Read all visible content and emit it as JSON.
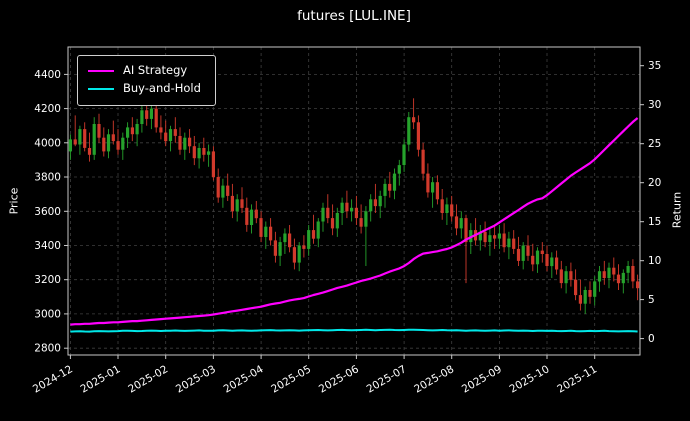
{
  "title": "futures [LUL.INE]",
  "legend": {
    "items": [
      {
        "label": "AI Strategy",
        "color": "#ff00ff"
      },
      {
        "label": "Buy-and-Hold",
        "color": "#00e8e8"
      }
    ]
  },
  "chart_data": {
    "type": "candlestick_with_lines",
    "title": "futures [LUL.INE]",
    "background": "#000000",
    "grid": {
      "visible": true,
      "color": "#3f3f3f",
      "style": "dashed"
    },
    "legend_position": "upper left",
    "x_ticks": {
      "labels": [
        "2024-12",
        "2025-01",
        "2025-02",
        "2025-03",
        "2025-04",
        "2025-05",
        "2025-06",
        "2025-07",
        "2025-08",
        "2025-09",
        "2025-10",
        "2025-11"
      ],
      "candle_indices": [
        0,
        10,
        20,
        30,
        40,
        50,
        60,
        70,
        80,
        90,
        100,
        110
      ]
    },
    "price_axis": {
      "label": "Price",
      "side": "left",
      "ticks": [
        2800,
        3000,
        3200,
        3400,
        3600,
        3800,
        4000,
        4200,
        4400
      ],
      "ylim": [
        2760,
        4560
      ]
    },
    "return_axis": {
      "label": "Return",
      "side": "right",
      "ticks": [
        0,
        5,
        10,
        15,
        20,
        25,
        30,
        35
      ],
      "ylim": [
        -2.1,
        37.4
      ]
    },
    "candles": {
      "up_color": "#26a32c",
      "down_color": "#d23a2c",
      "ohlc": [
        [
          3950,
          4050,
          3900,
          4020
        ],
        [
          4020,
          4160,
          3980,
          3990
        ],
        [
          3990,
          4100,
          3930,
          4080
        ],
        [
          4080,
          4120,
          3950,
          3970
        ],
        [
          3970,
          4060,
          3890,
          3930
        ],
        [
          3930,
          4150,
          3900,
          4110
        ],
        [
          4110,
          4170,
          4000,
          4030
        ],
        [
          4030,
          4090,
          3920,
          3950
        ],
        [
          3950,
          4080,
          3910,
          4050
        ],
        [
          4050,
          4130,
          3990,
          4010
        ],
        [
          4010,
          4080,
          3930,
          3960
        ],
        [
          3960,
          4060,
          3900,
          4030
        ],
        [
          4030,
          4120,
          3970,
          4090
        ],
        [
          4090,
          4150,
          4010,
          4050
        ],
        [
          4050,
          4140,
          3980,
          4110
        ],
        [
          4110,
          4220,
          4060,
          4190
        ],
        [
          4190,
          4240,
          4100,
          4140
        ],
        [
          4140,
          4230,
          4080,
          4200
        ],
        [
          4200,
          4220,
          4060,
          4090
        ],
        [
          4090,
          4160,
          4020,
          4060
        ],
        [
          4060,
          4130,
          3980,
          4010
        ],
        [
          4010,
          4100,
          3950,
          4080
        ],
        [
          4080,
          4150,
          4000,
          4040
        ],
        [
          4040,
          4090,
          3930,
          3960
        ],
        [
          3960,
          4060,
          3900,
          4030
        ],
        [
          4030,
          4080,
          3940,
          3980
        ],
        [
          3980,
          4040,
          3870,
          3910
        ],
        [
          3910,
          4000,
          3850,
          3970
        ],
        [
          3970,
          4030,
          3890,
          3930
        ],
        [
          3930,
          3990,
          3860,
          3950
        ],
        [
          3950,
          3980,
          3780,
          3800
        ],
        [
          3800,
          3850,
          3650,
          3680
        ],
        [
          3680,
          3790,
          3620,
          3750
        ],
        [
          3750,
          3820,
          3660,
          3690
        ],
        [
          3690,
          3760,
          3560,
          3600
        ],
        [
          3600,
          3700,
          3540,
          3670
        ],
        [
          3670,
          3740,
          3590,
          3620
        ],
        [
          3620,
          3680,
          3480,
          3520
        ],
        [
          3520,
          3640,
          3470,
          3610
        ],
        [
          3610,
          3660,
          3530,
          3560
        ],
        [
          3560,
          3600,
          3420,
          3450
        ],
        [
          3450,
          3540,
          3380,
          3510
        ],
        [
          3510,
          3560,
          3400,
          3430
        ],
        [
          3430,
          3480,
          3300,
          3340
        ],
        [
          3340,
          3450,
          3280,
          3420
        ],
        [
          3420,
          3500,
          3350,
          3470
        ],
        [
          3470,
          3520,
          3360,
          3390
        ],
        [
          3390,
          3440,
          3260,
          3300
        ],
        [
          3300,
          3420,
          3250,
          3400
        ],
        [
          3400,
          3460,
          3330,
          3380
        ],
        [
          3380,
          3520,
          3340,
          3490
        ],
        [
          3490,
          3580,
          3410,
          3440
        ],
        [
          3440,
          3560,
          3390,
          3540
        ],
        [
          3540,
          3650,
          3480,
          3620
        ],
        [
          3620,
          3700,
          3530,
          3560
        ],
        [
          3560,
          3640,
          3460,
          3500
        ],
        [
          3500,
          3620,
          3450,
          3590
        ],
        [
          3590,
          3680,
          3520,
          3650
        ],
        [
          3650,
          3720,
          3560,
          3600
        ],
        [
          3600,
          3670,
          3540,
          3620
        ],
        [
          3620,
          3690,
          3520,
          3560
        ],
        [
          3560,
          3640,
          3470,
          3510
        ],
        [
          3510,
          3630,
          3280,
          3600
        ],
        [
          3600,
          3700,
          3540,
          3670
        ],
        [
          3670,
          3760,
          3590,
          3630
        ],
        [
          3630,
          3720,
          3560,
          3690
        ],
        [
          3690,
          3790,
          3620,
          3760
        ],
        [
          3760,
          3830,
          3680,
          3720
        ],
        [
          3720,
          3850,
          3670,
          3820
        ],
        [
          3820,
          3900,
          3750,
          3870
        ],
        [
          3870,
          4020,
          3830,
          3990
        ],
        [
          3990,
          4180,
          3950,
          4150
        ],
        [
          4150,
          4260,
          4080,
          4120
        ],
        [
          4120,
          4160,
          3920,
          3960
        ],
        [
          3960,
          4000,
          3780,
          3820
        ],
        [
          3820,
          3880,
          3680,
          3710
        ],
        [
          3710,
          3800,
          3620,
          3770
        ],
        [
          3770,
          3810,
          3640,
          3670
        ],
        [
          3670,
          3730,
          3550,
          3590
        ],
        [
          3590,
          3680,
          3520,
          3640
        ],
        [
          3640,
          3690,
          3540,
          3570
        ],
        [
          3570,
          3640,
          3460,
          3500
        ],
        [
          3500,
          3600,
          3440,
          3560
        ],
        [
          3560,
          3580,
          3180,
          3420
        ],
        [
          3420,
          3530,
          3350,
          3490
        ],
        [
          3490,
          3560,
          3400,
          3430
        ],
        [
          3430,
          3520,
          3370,
          3480
        ],
        [
          3480,
          3540,
          3390,
          3420
        ],
        [
          3420,
          3500,
          3340,
          3460
        ],
        [
          3460,
          3510,
          3380,
          3440
        ],
        [
          3440,
          3520,
          3380,
          3470
        ],
        [
          3470,
          3530,
          3360,
          3390
        ],
        [
          3390,
          3480,
          3320,
          3440
        ],
        [
          3440,
          3490,
          3350,
          3380
        ],
        [
          3380,
          3450,
          3280,
          3310
        ],
        [
          3310,
          3420,
          3260,
          3400
        ],
        [
          3400,
          3460,
          3310,
          3340
        ],
        [
          3340,
          3410,
          3250,
          3290
        ],
        [
          3290,
          3390,
          3240,
          3370
        ],
        [
          3370,
          3420,
          3300,
          3350
        ],
        [
          3350,
          3400,
          3250,
          3280
        ],
        [
          3280,
          3360,
          3210,
          3330
        ],
        [
          3330,
          3370,
          3230,
          3260
        ],
        [
          3260,
          3310,
          3150,
          3180
        ],
        [
          3180,
          3280,
          3120,
          3250
        ],
        [
          3250,
          3300,
          3160,
          3200
        ],
        [
          3200,
          3260,
          3080,
          3110
        ],
        [
          3110,
          3200,
          3020,
          3060
        ],
        [
          3060,
          3160,
          3000,
          3140
        ],
        [
          3140,
          3190,
          3060,
          3100
        ],
        [
          3100,
          3220,
          3050,
          3190
        ],
        [
          3190,
          3280,
          3130,
          3250
        ],
        [
          3250,
          3310,
          3170,
          3210
        ],
        [
          3210,
          3300,
          3150,
          3270
        ],
        [
          3270,
          3330,
          3190,
          3230
        ],
        [
          3230,
          3290,
          3140,
          3180
        ],
        [
          3180,
          3260,
          3120,
          3240
        ],
        [
          3240,
          3310,
          3180,
          3280
        ],
        [
          3280,
          3320,
          3150,
          3190
        ],
        [
          3190,
          3230,
          3080,
          3150
        ]
      ]
    },
    "series": [
      {
        "name": "AI Strategy",
        "color": "#ff00ff",
        "axis": "return",
        "values": [
          1.8,
          1.85,
          1.85,
          1.9,
          1.9,
          1.95,
          2.0,
          2.0,
          2.05,
          2.1,
          2.1,
          2.15,
          2.2,
          2.25,
          2.25,
          2.3,
          2.35,
          2.4,
          2.45,
          2.5,
          2.55,
          2.6,
          2.65,
          2.7,
          2.75,
          2.8,
          2.85,
          2.9,
          2.95,
          3.0,
          3.1,
          3.2,
          3.3,
          3.4,
          3.5,
          3.6,
          3.7,
          3.8,
          3.9,
          4.0,
          4.1,
          4.25,
          4.4,
          4.5,
          4.6,
          4.75,
          4.9,
          5.0,
          5.1,
          5.2,
          5.4,
          5.6,
          5.75,
          5.9,
          6.1,
          6.3,
          6.5,
          6.65,
          6.8,
          7.0,
          7.2,
          7.4,
          7.55,
          7.7,
          7.9,
          8.1,
          8.35,
          8.6,
          8.8,
          9.0,
          9.3,
          9.7,
          10.2,
          10.6,
          10.9,
          11.0,
          11.1,
          11.2,
          11.35,
          11.5,
          11.7,
          12.0,
          12.3,
          12.7,
          13.0,
          13.3,
          13.6,
          13.9,
          14.2,
          14.5,
          14.9,
          15.3,
          15.7,
          16.1,
          16.5,
          16.9,
          17.3,
          17.6,
          17.85,
          18.0,
          18.4,
          18.9,
          19.4,
          19.9,
          20.4,
          20.9,
          21.3,
          21.7,
          22.1,
          22.5,
          23.0,
          23.6,
          24.2,
          24.8,
          25.4,
          26.0,
          26.6,
          27.2,
          27.8,
          28.3
        ]
      },
      {
        "name": "Buy-and-Hold",
        "color": "#00e8e8",
        "axis": "return",
        "values": [
          0.9,
          0.93,
          0.95,
          0.92,
          0.9,
          0.94,
          0.97,
          0.95,
          0.93,
          0.95,
          0.97,
          1.0,
          1.02,
          0.99,
          0.96,
          0.98,
          1.01,
          1.03,
          1.0,
          0.98,
          1.0,
          1.02,
          1.04,
          1.01,
          0.99,
          1.01,
          1.03,
          1.05,
          1.02,
          1.0,
          1.02,
          1.05,
          1.07,
          1.04,
          1.02,
          1.04,
          1.06,
          1.03,
          1.01,
          1.03,
          1.05,
          1.07,
          1.09,
          1.06,
          1.04,
          1.06,
          1.08,
          1.05,
          1.03,
          1.05,
          1.07,
          1.09,
          1.11,
          1.08,
          1.06,
          1.08,
          1.1,
          1.12,
          1.09,
          1.07,
          1.09,
          1.11,
          1.13,
          1.1,
          1.08,
          1.1,
          1.12,
          1.14,
          1.11,
          1.09,
          1.11,
          1.13,
          1.15,
          1.12,
          1.1,
          1.08,
          1.06,
          1.08,
          1.1,
          1.07,
          1.05,
          1.07,
          1.04,
          1.02,
          1.04,
          1.06,
          1.03,
          1.01,
          1.03,
          1.05,
          1.02,
          1.04,
          1.06,
          1.03,
          1.01,
          1.03,
          1.0,
          0.98,
          1.0,
          1.02,
          0.99,
          1.01,
          0.98,
          0.96,
          0.98,
          1.0,
          0.97,
          0.95,
          0.97,
          0.99,
          0.96,
          0.98,
          1.0,
          0.97,
          0.95,
          0.93,
          0.95,
          0.97,
          0.94,
          0.92
        ]
      }
    ]
  }
}
